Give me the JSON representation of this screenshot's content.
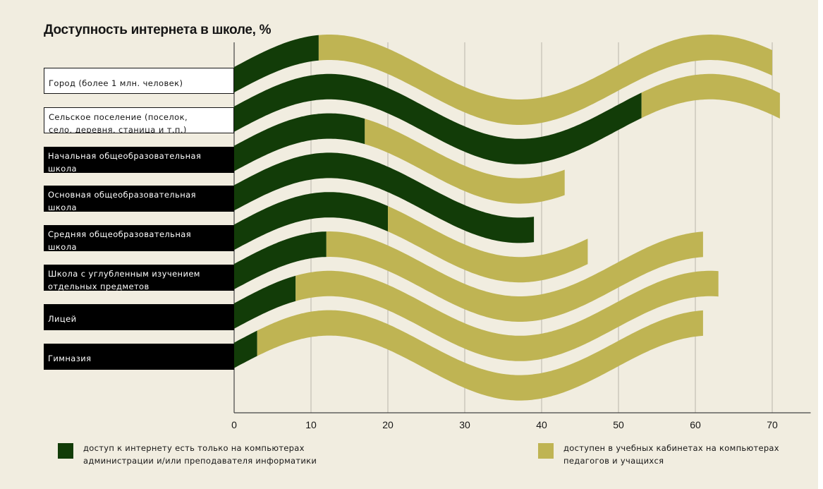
{
  "chart_data": {
    "type": "bar",
    "title": "Доступность интернета в школе, %",
    "xlabel": "",
    "ylabel": "",
    "xlim": [
      0,
      70
    ],
    "x_ticks": [
      "0",
      "10",
      "20",
      "30",
      "40",
      "50",
      "60",
      "70"
    ],
    "grid": true,
    "stacked": true,
    "categories": [
      [
        "Город (более 1 млн. человек)"
      ],
      [
        "Сельское поселение (поселок,",
        "село, деревня, станица и т.п.)"
      ],
      [
        "Начальная общеобразовательная",
        "школа"
      ],
      [
        "Основная общеобразовательная",
        "школа"
      ],
      [
        "Средняя общеобразовательная",
        "школа"
      ],
      [
        "Школа с углубленным изучением",
        "отдельных предметов"
      ],
      [
        "Лицей"
      ],
      [
        "Гимназия"
      ]
    ],
    "series": [
      {
        "name": "доступ к интернету есть только на компьютерах администрации и/или преподавателя информатики",
        "legend_lines": [
          "доступ к интернету есть только на компьютерах",
          "администрации и/или преподавателя информатики"
        ],
        "color": "#123c08",
        "values": [
          11,
          53,
          17,
          39,
          20,
          12,
          8,
          3
        ]
      },
      {
        "name": "доступен в учебных кабинетах на компьютерах педагогов и учащихся",
        "legend_lines": [
          "доступен в учебных кабинетах на компьютерах",
          "педагогов и учащихся"
        ],
        "color": "#bfb453",
        "values": [
          59,
          18,
          26,
          0,
          26,
          49,
          55,
          58
        ]
      }
    ]
  }
}
